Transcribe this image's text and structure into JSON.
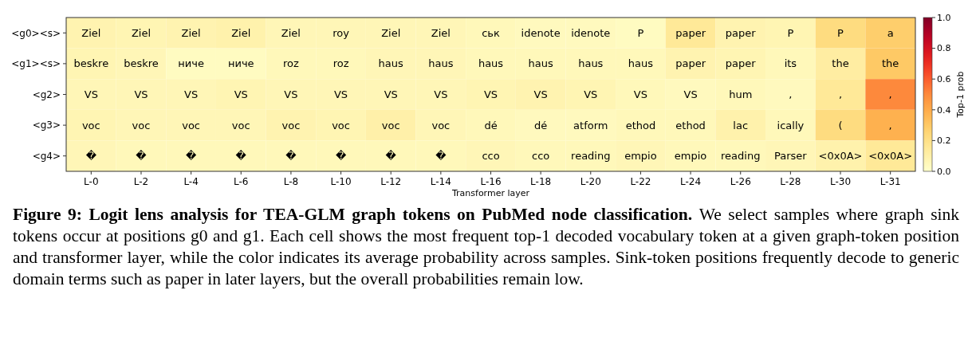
{
  "chart_data": {
    "type": "heatmap",
    "title": "Figure 9: Logit lens analysis for TEA-GLM graph tokens on PubMed node classification.",
    "annotations": [
      "We select samples where graph sink tokens occur at positions g0 and g1. Each cell shows the most frequent top-1 decoded vocabulary token at a given graph-token position and transformer layer, while the color indicates its average probability across samples. Sink-token positions frequently decode to generic domain terms such as paper in later layers, but the overall probabilities remain low."
    ],
    "xlabel": "Transformer layer",
    "clabel": "Top-1 prob",
    "categories": [
      "L-0",
      "L-2",
      "L-4",
      "L-6",
      "L-8",
      "L-10",
      "L-12",
      "L-14",
      "L-16",
      "L-18",
      "L-20",
      "L-22",
      "L-24",
      "L-26",
      "L-28",
      "L-30",
      "L-31"
    ],
    "y_categories": [
      "<g0><s>",
      "<g1><s>",
      "<g2>",
      "<g3>",
      "<g4>"
    ],
    "cells": [
      [
        0.08,
        0.07,
        0.08,
        0.09,
        0.06,
        0.06,
        0.06,
        0.06,
        0.05,
        0.04,
        0.04,
        0.03,
        0.15,
        0.08,
        0.07,
        0.22,
        0.28
      ],
      [
        0.07,
        0.06,
        0.03,
        0.03,
        0.05,
        0.05,
        0.06,
        0.06,
        0.05,
        0.05,
        0.05,
        0.05,
        0.08,
        0.07,
        0.05,
        0.12,
        0.3
      ],
      [
        0.06,
        0.06,
        0.06,
        0.07,
        0.06,
        0.06,
        0.06,
        0.06,
        0.07,
        0.08,
        0.07,
        0.05,
        0.04,
        0.05,
        0.04,
        0.15,
        0.5
      ],
      [
        0.07,
        0.06,
        0.06,
        0.06,
        0.08,
        0.07,
        0.1,
        0.06,
        0.05,
        0.04,
        0.04,
        0.05,
        0.05,
        0.09,
        0.05,
        0.22,
        0.38
      ],
      [
        0.06,
        0.05,
        0.05,
        0.05,
        0.05,
        0.05,
        0.05,
        0.05,
        0.06,
        0.05,
        0.05,
        0.06,
        0.05,
        0.05,
        0.06,
        0.09,
        0.15
      ]
    ],
    "cell_labels": [
      [
        "Ziel",
        "Ziel",
        "Ziel",
        "Ziel",
        "Ziel",
        "roy",
        "Ziel",
        "Ziel",
        "ськ",
        "idenote",
        "idenote",
        "P",
        "paper",
        "paper",
        "P",
        "P",
        "a"
      ],
      [
        "beskre",
        "beskre",
        "ниче",
        "ниче",
        "roz",
        "roz",
        "haus",
        "haus",
        "haus",
        "haus",
        "haus",
        "haus",
        "paper",
        "paper",
        "its",
        "the",
        "the"
      ],
      [
        "VS",
        "VS",
        "VS",
        "VS",
        "VS",
        "VS",
        "VS",
        "VS",
        "VS",
        "VS",
        "VS",
        "VS",
        "VS",
        "hum",
        ",",
        ",",
        ","
      ],
      [
        "voc",
        "voc",
        "voc",
        "voc",
        "voc",
        "voc",
        "voc",
        "voc",
        "dé",
        "dé",
        "atform",
        "ethod",
        "ethod",
        "lac",
        "ically",
        "(",
        ","
      ],
      [
        "�",
        "�",
        "�",
        "�",
        "�",
        "�",
        "�",
        "�",
        "cco",
        "cco",
        "reading",
        "empio",
        "empio",
        "reading",
        "Parser",
        "<0x0A>",
        "<0x0A>"
      ]
    ],
    "clim": [
      0,
      1
    ],
    "cticks": [
      {
        "value": 0,
        "label": "0.0"
      },
      {
        "value": 0.2,
        "label": "0.2"
      },
      {
        "value": 0.4,
        "label": "0.4"
      },
      {
        "value": 0.6,
        "label": "0.6"
      },
      {
        "value": 0.8,
        "label": "0.8"
      },
      {
        "value": 1,
        "label": "1.0"
      }
    ]
  }
}
